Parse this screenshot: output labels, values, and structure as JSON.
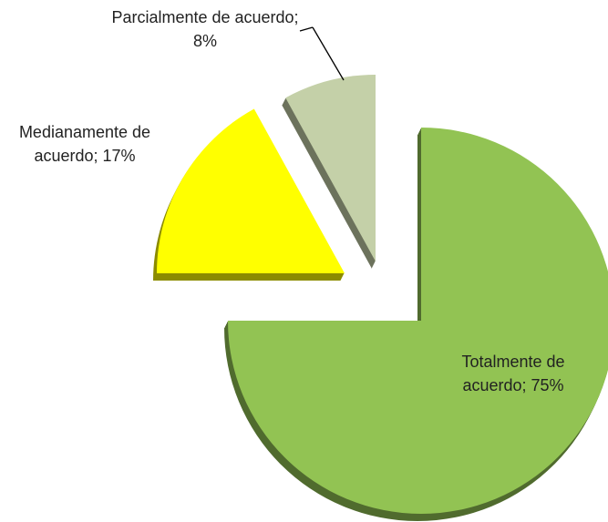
{
  "chart_data": {
    "type": "pie",
    "categories": [
      "Totalmente de acuerdo",
      "Medianamente de acuerdo",
      "Parcialmente de acuerdo"
    ],
    "values": [
      75,
      17,
      8
    ],
    "value_labels": [
      "Totalmente de acuerdo; 75%",
      "Medianamente de acuerdo; 17%",
      "Parcialmente de acuerdo; 8%"
    ],
    "colors": [
      "#92c353",
      "#ffff00",
      "#c4d0a8"
    ]
  }
}
